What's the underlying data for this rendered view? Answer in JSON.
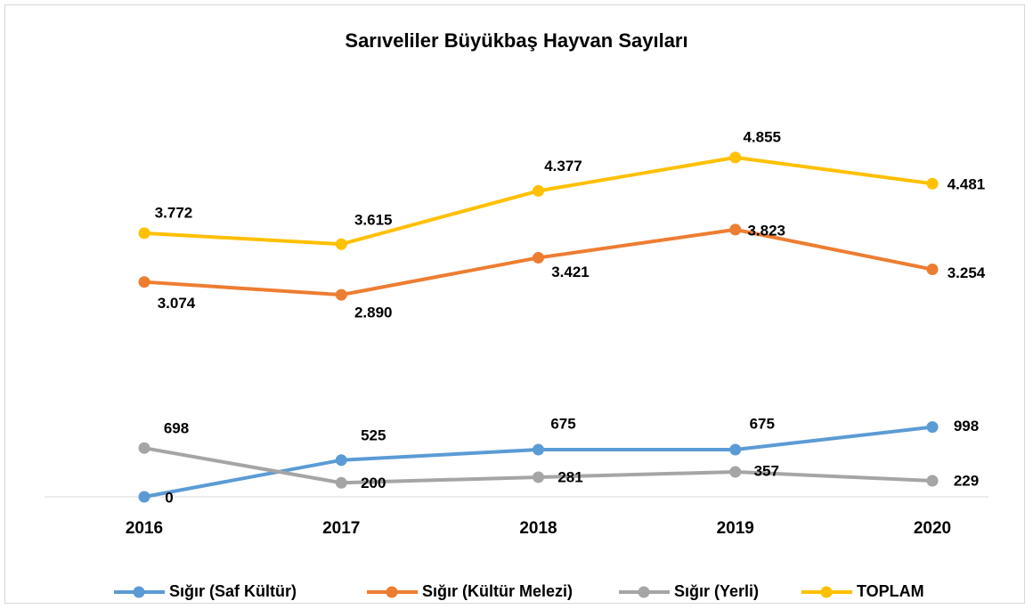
{
  "chart_data": {
    "type": "line",
    "title": "Sarıveliler Büyükbaş Hayvan Sayıları",
    "categories": [
      "2016",
      "2017",
      "2018",
      "2019",
      "2020"
    ],
    "ylim": [
      0,
      6000
    ],
    "grid": false,
    "legend": "bottom",
    "series": [
      {
        "name": "Sığır (Saf Kültür)",
        "color": "#5b9bd5",
        "values": [
          0,
          525,
          675,
          675,
          998
        ]
      },
      {
        "name": "Sığır (Kültür Melezi)",
        "color": "#ed7d31",
        "values": [
          3074,
          2890,
          3421,
          3823,
          3254
        ],
        "value_labels": [
          "3.074",
          "2.890",
          "3.421",
          "3.823",
          "3.254"
        ]
      },
      {
        "name": "Sığır (Yerli)",
        "color": "#a5a5a5",
        "values": [
          698,
          200,
          281,
          357,
          229
        ]
      },
      {
        "name": "TOPLAM",
        "color": "#ffc000",
        "values": [
          3772,
          3615,
          4377,
          4855,
          4481
        ],
        "value_labels": [
          "3.772",
          "3.615",
          "4.377",
          "4.855",
          "4.481"
        ]
      }
    ]
  }
}
